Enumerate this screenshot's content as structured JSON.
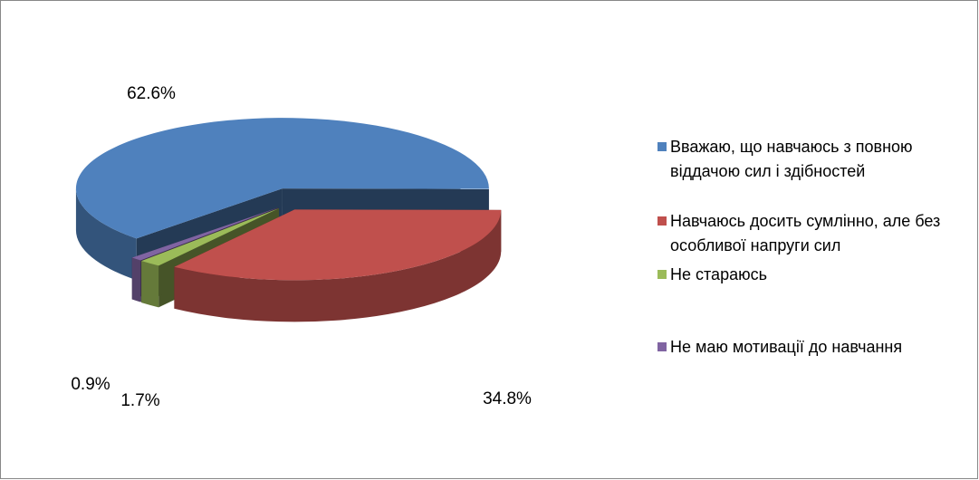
{
  "chart_data": {
    "type": "pie3d",
    "categories": [
      "Вважаю, що навчаюсь з повною віддачою сил і здібностей",
      "Навчаюсь досить сумлінно, але без особливої напруги сил",
      "Не стараюсь",
      "Не маю мотивації до навчання"
    ],
    "values": [
      62.6,
      34.8,
      1.7,
      0.9
    ],
    "value_labels": [
      "62.6%",
      "34.8%",
      "1.7%",
      "0.9%"
    ],
    "colors": [
      "#4f81bd",
      "#c0504d",
      "#9bbb59",
      "#8064a2"
    ],
    "legend": "right"
  }
}
